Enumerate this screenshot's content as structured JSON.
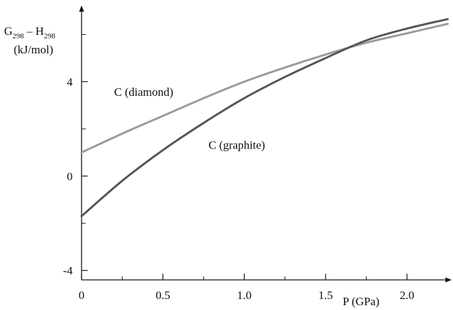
{
  "chart_data": {
    "type": "line",
    "xlabel": "P (GPa)",
    "ylabel": {
      "g_main": "G",
      "g_sub": "298",
      "dash": " – H",
      "h_sub": "298",
      "unit": "(kJ/mol)"
    },
    "xlim": [
      0,
      2.27
    ],
    "ylim": [
      -4.4,
      7.2
    ],
    "x_ticks": [
      0,
      0.5,
      1.0,
      1.5,
      2.0
    ],
    "x_tick_labels": [
      "0",
      "0.5",
      "1.0",
      "1.5",
      "2.0"
    ],
    "x_minor_ticks": [
      0.25,
      0.75,
      1.25,
      1.75
    ],
    "y_ticks": [
      -4,
      0,
      4
    ],
    "y_tick_labels": [
      "-4",
      "0",
      "4"
    ],
    "y_minor_ticks": [
      -2,
      2,
      6
    ],
    "grid": false,
    "legend": "none",
    "series": [
      {
        "name": "C (diamond)",
        "color": "#9a9a9a",
        "x": [
          0,
          0.25,
          0.5,
          0.75,
          1.0,
          1.25,
          1.5,
          1.75,
          2.0,
          2.25
        ],
        "y": [
          1.0,
          1.8,
          2.55,
          3.3,
          4.0,
          4.6,
          5.15,
          5.65,
          6.05,
          6.45
        ]
      },
      {
        "name": "C (graphite)",
        "color": "#555555",
        "x": [
          0,
          0.25,
          0.5,
          0.75,
          1.0,
          1.25,
          1.5,
          1.75,
          2.0,
          2.25
        ],
        "y": [
          -1.7,
          -0.2,
          1.1,
          2.25,
          3.3,
          4.2,
          5.0,
          5.75,
          6.25,
          6.65
        ]
      }
    ],
    "annotations": [
      {
        "text": "C (diamond)",
        "x": 0.2,
        "y": 3.4
      },
      {
        "text": "C (graphite)",
        "x": 0.78,
        "y": 1.15
      }
    ]
  }
}
